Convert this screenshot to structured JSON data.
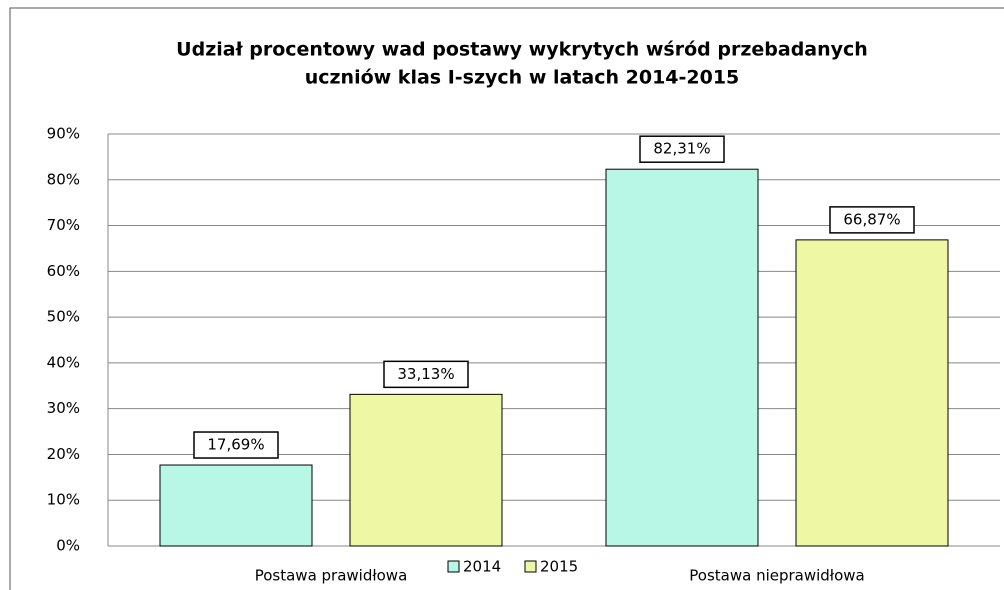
{
  "chart_data": {
    "type": "bar",
    "title": [
      "Udział procentowy wad postawy wykrytych wśród przebadanych",
      "uczniów klas I-szych w latach 2014-2015"
    ],
    "categories": [
      "Postawa prawidłowa",
      "Postawa nieprawidłowa"
    ],
    "series": [
      {
        "name": "2014",
        "color": "#b8f7e6",
        "values": [
          17.69,
          82.31
        ],
        "value_labels": [
          "17,69%",
          "82,31%"
        ]
      },
      {
        "name": "2015",
        "color": "#eef7a4",
        "values": [
          33.13,
          66.87
        ],
        "value_labels": [
          "33,13%",
          "66,87%"
        ]
      }
    ],
    "ylim": [
      0,
      90
    ],
    "yticks": [
      {
        "value": 0,
        "label": "0%"
      },
      {
        "value": 10,
        "label": "10%"
      },
      {
        "value": 20,
        "label": "20%"
      },
      {
        "value": 30,
        "label": "30%"
      },
      {
        "value": 40,
        "label": "40%"
      },
      {
        "value": 50,
        "label": "50%"
      },
      {
        "value": 60,
        "label": "60%"
      },
      {
        "value": 70,
        "label": "70%"
      },
      {
        "value": 80,
        "label": "80%"
      },
      {
        "value": 90,
        "label": "90%"
      }
    ],
    "grid": true,
    "legend": "bottom"
  }
}
